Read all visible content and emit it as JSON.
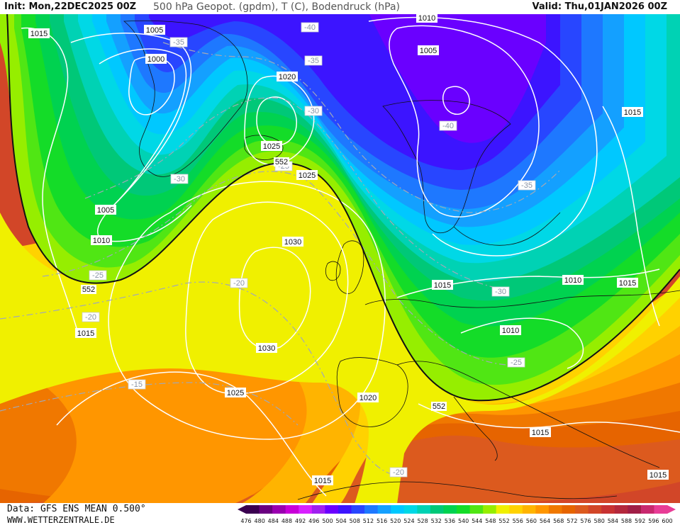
{
  "header": {
    "init": "Init: Mon,22DEC2025 00Z",
    "field": "500 hPa Geopot. (gpdm), T (C), Bodendruck (hPa)",
    "valid": "Valid: Thu,01JAN2026 00Z"
  },
  "footer": {
    "data_source": "Data: GFS ENS MEAN 0.500°",
    "website": "WWW.WETTERZENTRALE.DE"
  },
  "legend": {
    "unit": "gpdm",
    "ticks": [
      "476",
      "480",
      "484",
      "488",
      "492",
      "496",
      "500",
      "504",
      "508",
      "512",
      "516",
      "520",
      "524",
      "528",
      "532",
      "536",
      "540",
      "544",
      "548",
      "552",
      "556",
      "560",
      "564",
      "568",
      "572",
      "576",
      "580",
      "584",
      "588",
      "592",
      "596",
      "600"
    ],
    "colors": [
      "#3a0050",
      "#6a0080",
      "#9a00b0",
      "#c800d8",
      "#d820ff",
      "#a020f0",
      "#6a00ff",
      "#3c14ff",
      "#2846ff",
      "#1e78ff",
      "#14a0ff",
      "#00c8ff",
      "#00d8e6",
      "#00d2b4",
      "#00c878",
      "#00d250",
      "#14dc28",
      "#50e614",
      "#96ee00",
      "#f0f000",
      "#ffd200",
      "#ffb400",
      "#ff9600",
      "#f07800",
      "#e66400",
      "#dc5a1e",
      "#d24628",
      "#c83232",
      "#b4283c",
      "#a01e46",
      "#c8286e",
      "#e83c96"
    ]
  },
  "isobar_labels": [
    {
      "id": "p1015-a",
      "text": "1015"
    },
    {
      "id": "p1005-a",
      "text": "1005"
    },
    {
      "id": "p1000-a",
      "text": "1000"
    },
    {
      "id": "p1020-a",
      "text": "1020"
    },
    {
      "id": "p1025-a",
      "text": "1025"
    },
    {
      "id": "p1025-b",
      "text": "1025"
    },
    {
      "id": "p1010-a",
      "text": "1010"
    },
    {
      "id": "p1005-b",
      "text": "1005"
    },
    {
      "id": "p1015-b",
      "text": "1015"
    },
    {
      "id": "p1005-c",
      "text": "1005"
    },
    {
      "id": "p1010-b",
      "text": "1010"
    },
    {
      "id": "p1030-a",
      "text": "1030"
    },
    {
      "id": "p1030-b",
      "text": "1030"
    },
    {
      "id": "p1015-c",
      "text": "1015"
    },
    {
      "id": "p1025-c",
      "text": "1025"
    },
    {
      "id": "p1020-b",
      "text": "1020"
    },
    {
      "id": "p1015-d",
      "text": "1015"
    },
    {
      "id": "p1015-e",
      "text": "1015"
    },
    {
      "id": "p1010-c",
      "text": "1010"
    },
    {
      "id": "p1015-f",
      "text": "1015"
    },
    {
      "id": "p1010-d",
      "text": "1010"
    },
    {
      "id": "p1015-g",
      "text": "1015"
    },
    {
      "id": "p1015-h",
      "text": "1015"
    }
  ],
  "temperature_labels": [
    {
      "id": "t-40-a",
      "text": "-40"
    },
    {
      "id": "t-35-a",
      "text": "-35"
    },
    {
      "id": "t-35-b",
      "text": "-35"
    },
    {
      "id": "t-30-a",
      "text": "-30"
    },
    {
      "id": "t-25-a",
      "text": "-25"
    },
    {
      "id": "t-40-b",
      "text": "-40"
    },
    {
      "id": "t-35-c",
      "text": "-35"
    },
    {
      "id": "t-30-b",
      "text": "-30"
    },
    {
      "id": "t-25-b",
      "text": "-25"
    },
    {
      "id": "t-20-a",
      "text": "-20"
    },
    {
      "id": "t-20-b",
      "text": "-20"
    },
    {
      "id": "t-15-a",
      "text": "-15"
    },
    {
      "id": "t-30-c",
      "text": "-30"
    },
    {
      "id": "t-25-c",
      "text": "-25"
    },
    {
      "id": "t-20-c",
      "text": "-20"
    }
  ],
  "geopot_labels": [
    {
      "id": "g552-a",
      "text": "552"
    },
    {
      "id": "g552-b",
      "text": "552"
    },
    {
      "id": "g552-c",
      "text": "552"
    }
  ]
}
